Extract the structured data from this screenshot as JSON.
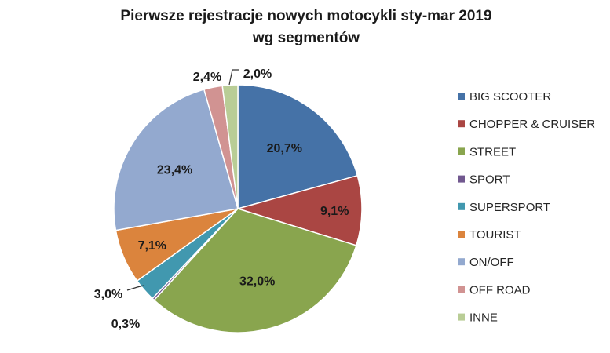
{
  "chart_data": {
    "type": "pie",
    "title": "Pierwsze rejestracje nowych motocykli sty-mar 2019",
    "subtitle": "wg segmentów",
    "legend_position": "right",
    "slices": [
      {
        "name": "BIG SCOOTER",
        "value": 20.7,
        "label": "20,7%",
        "color": "#4572A7"
      },
      {
        "name": "CHOPPER & CRUISER",
        "value": 9.1,
        "label": "9,1%",
        "color": "#AA4643"
      },
      {
        "name": "STREET",
        "value": 32.0,
        "label": "32,0%",
        "color": "#89A54E"
      },
      {
        "name": "SPORT",
        "value": 0.3,
        "label": "0,3%",
        "color": "#71588F"
      },
      {
        "name": "SUPERSPORT",
        "value": 3.0,
        "label": "3,0%",
        "color": "#4198AF"
      },
      {
        "name": "TOURIST",
        "value": 7.1,
        "label": "7,1%",
        "color": "#DB843D"
      },
      {
        "name": "ON/OFF",
        "value": 23.4,
        "label": "23,4%",
        "color": "#93A9CF"
      },
      {
        "name": "OFF ROAD",
        "value": 2.4,
        "label": "2,4%",
        "color": "#D19392"
      },
      {
        "name": "INNE",
        "value": 2.0,
        "label": "2,0%",
        "color": "#B9CD96"
      }
    ]
  }
}
